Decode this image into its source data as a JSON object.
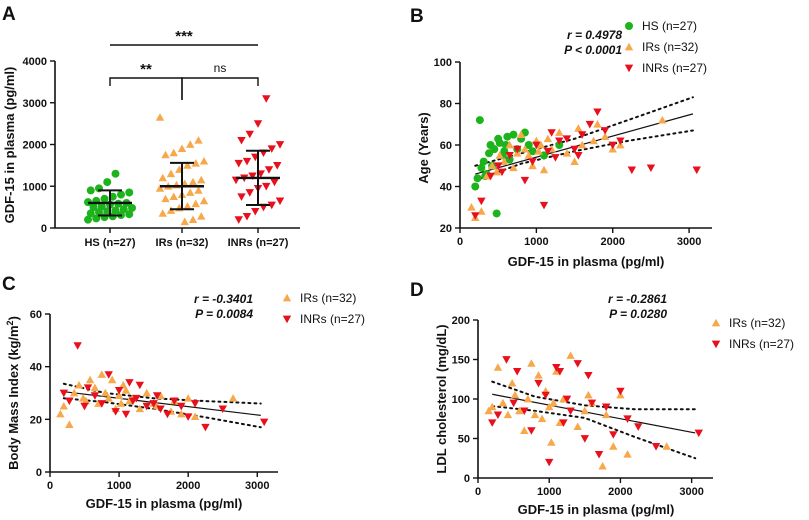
{
  "colors": {
    "HS": "#1db31d",
    "IRs": "#f7a84b",
    "INRs": "#e8101c",
    "axis": "#111111"
  },
  "chart_data": [
    {
      "panel": "A",
      "type": "scatter",
      "title": "",
      "xlabel": "",
      "ylabel": "GDF-15 in plasma (pg/ml)",
      "ylim": [
        0,
        4000
      ],
      "yticks": [
        "0",
        "1000",
        "2000",
        "3000",
        "4000"
      ],
      "categories": [
        "HS (n=27)",
        "IRs (n=32)",
        "INRs (n=27)"
      ],
      "series": [
        {
          "name": "HS",
          "mean": 600,
          "sd_low": 300,
          "sd_high": 900,
          "values": [
            200,
            230,
            260,
            280,
            310,
            330,
            350,
            380,
            400,
            420,
            450,
            480,
            500,
            520,
            560,
            580,
            600,
            620,
            650,
            700,
            750,
            800,
            850,
            900,
            950,
            1100,
            1300
          ]
        },
        {
          "name": "IRs",
          "mean": 1000,
          "sd_low": 450,
          "sd_high": 1560,
          "values": [
            150,
            200,
            280,
            350,
            420,
            480,
            520,
            580,
            650,
            700,
            750,
            800,
            850,
            900,
            950,
            1000,
            1030,
            1060,
            1100,
            1150,
            1200,
            1300,
            1400,
            1500,
            1550,
            1600,
            1750,
            1800,
            1900,
            2000,
            2100,
            2650
          ]
        },
        {
          "name": "INRs",
          "mean": 1200,
          "sd_low": 550,
          "sd_high": 1850,
          "values": [
            200,
            280,
            400,
            500,
            550,
            650,
            750,
            850,
            950,
            1000,
            1100,
            1150,
            1200,
            1250,
            1300,
            1400,
            1500,
            1550,
            1600,
            1700,
            1800,
            1900,
            2000,
            2100,
            2250,
            2500,
            3100
          ]
        }
      ],
      "significance": [
        {
          "from": "HS (n=27)",
          "to": "IRs (n=32)",
          "label": "**"
        },
        {
          "from": "IRs (n=32)",
          "to": "INRs (n=27)",
          "label": "ns"
        },
        {
          "from": "HS (n=27)",
          "to": "INRs (n=27)",
          "label": "***"
        }
      ]
    },
    {
      "panel": "B",
      "type": "scatter",
      "xlabel": "GDF-15 in plasma (pg/ml)",
      "ylabel": "Age (Years)",
      "xlim": [
        0,
        3300
      ],
      "ylim": [
        20,
        100
      ],
      "xticks": [
        "0",
        "1000",
        "2000",
        "3000"
      ],
      "yticks": [
        "20",
        "40",
        "60",
        "80",
        "100"
      ],
      "stats": {
        "r": "r = 0.4978",
        "p": "P < 0.0001"
      },
      "legend": [
        "HS (n=27)",
        "IRs (n=32)",
        "INRs (n=27)"
      ],
      "fit": {
        "x": [
          200,
          3050
        ],
        "y": [
          46,
          75
        ]
      },
      "ci_upper": {
        "x": [
          200,
          800,
          1500,
          2200,
          3050
        ],
        "y": [
          50,
          56,
          63,
          72,
          83
        ]
      },
      "ci_lower": {
        "x": [
          200,
          800,
          1500,
          2200,
          3050
        ],
        "y": [
          43,
          51,
          57,
          62,
          67
        ]
      },
      "series": [
        {
          "name": "HS",
          "marker": "circle",
          "x": [
            200,
            230,
            260,
            280,
            310,
            330,
            350,
            380,
            400,
            420,
            450,
            480,
            500,
            520,
            560,
            580,
            600,
            620,
            650,
            700,
            750,
            800,
            850,
            900,
            950,
            1100,
            1300
          ],
          "y": [
            40,
            44,
            72,
            49,
            52,
            45,
            46,
            56,
            60,
            50,
            58,
            27,
            63,
            61,
            55,
            57,
            60,
            64,
            53,
            65,
            58,
            63,
            66,
            60,
            57,
            55,
            60
          ]
        },
        {
          "name": "IRs",
          "marker": "triangle-up",
          "x": [
            150,
            200,
            280,
            350,
            420,
            480,
            520,
            580,
            650,
            700,
            750,
            800,
            850,
            900,
            950,
            1000,
            1030,
            1060,
            1100,
            1150,
            1200,
            1300,
            1400,
            1500,
            1550,
            1600,
            1750,
            1800,
            1900,
            2000,
            2100,
            2650
          ],
          "y": [
            30,
            25,
            28,
            45,
            50,
            47,
            55,
            52,
            60,
            49,
            56,
            65,
            58,
            55,
            50,
            62,
            57,
            60,
            48,
            63,
            58,
            66,
            56,
            52,
            68,
            60,
            62,
            70,
            64,
            58,
            60,
            72
          ]
        },
        {
          "name": "INRs",
          "marker": "triangle-down",
          "x": [
            200,
            280,
            400,
            500,
            550,
            650,
            750,
            850,
            950,
            1000,
            1100,
            1150,
            1200,
            1250,
            1300,
            1400,
            1500,
            1550,
            1600,
            1700,
            1800,
            1900,
            2000,
            2100,
            2250,
            2500,
            3100
          ],
          "y": [
            26,
            33,
            45,
            50,
            47,
            55,
            58,
            43,
            52,
            60,
            31,
            57,
            66,
            54,
            62,
            63,
            58,
            55,
            65,
            70,
            76,
            67,
            60,
            62,
            48,
            49,
            48
          ]
        }
      ]
    },
    {
      "panel": "C",
      "type": "scatter",
      "xlabel": "GDF-15 in plasma (pg/ml)",
      "ylabel_main": "Body Mass Index (kg/m",
      "ylabel_sup": "2",
      "ylabel_end": ")",
      "xlim": [
        0,
        3300
      ],
      "ylim": [
        0,
        60
      ],
      "xticks": [
        "0",
        "1000",
        "2000",
        "3000"
      ],
      "yticks": [
        "0",
        "20",
        "40",
        "60"
      ],
      "stats": {
        "r": "r = -0.3401",
        "p": "P = 0.0084"
      },
      "legend": [
        "IRs (n=32)",
        "INRs (n=27)"
      ],
      "fit": {
        "x": [
          200,
          3050
        ],
        "y": [
          30.5,
          21.5
        ]
      },
      "ci_upper": {
        "x": [
          200,
          800,
          1500,
          2200,
          3050
        ],
        "y": [
          33.5,
          30,
          28,
          27,
          26
        ]
      },
      "ci_lower": {
        "x": [
          200,
          800,
          1500,
          2200,
          3050
        ],
        "y": [
          28,
          26.5,
          24,
          21,
          17
        ]
      },
      "series": [
        {
          "name": "IRs",
          "marker": "triangle-up",
          "x": [
            150,
            200,
            280,
            350,
            420,
            480,
            520,
            580,
            650,
            700,
            750,
            800,
            850,
            900,
            950,
            1000,
            1030,
            1060,
            1100,
            1150,
            1200,
            1300,
            1400,
            1500,
            1550,
            1600,
            1750,
            1800,
            1900,
            2000,
            2100,
            2650
          ],
          "y": [
            22,
            25,
            18,
            30,
            33,
            28,
            27,
            35,
            32,
            26,
            37,
            30,
            28,
            35,
            24,
            29,
            26,
            33,
            31,
            27,
            28,
            24,
            30,
            26,
            25,
            29,
            23,
            27,
            22,
            28,
            21,
            28
          ]
        },
        {
          "name": "INRs",
          "marker": "triangle-down",
          "x": [
            200,
            280,
            400,
            500,
            550,
            650,
            750,
            850,
            950,
            1000,
            1100,
            1150,
            1200,
            1250,
            1300,
            1400,
            1500,
            1550,
            1600,
            1700,
            1800,
            1900,
            2000,
            2100,
            2250,
            2500,
            3100
          ],
          "y": [
            30,
            27,
            48,
            25,
            32,
            29,
            26,
            37,
            23,
            31,
            22,
            34,
            27,
            28,
            33,
            25,
            26,
            29,
            24,
            22,
            27,
            25,
            21,
            26,
            17,
            24,
            19
          ]
        }
      ]
    },
    {
      "panel": "D",
      "type": "scatter",
      "xlabel": "GDF-15 in plasma (pg/ml)",
      "ylabel": "LDL cholesterol (mg/dL)",
      "xlim": [
        0,
        3300
      ],
      "ylim": [
        0,
        200
      ],
      "xticks": [
        "0",
        "1000",
        "2000",
        "3000"
      ],
      "yticks": [
        "0",
        "50",
        "100",
        "150",
        "200"
      ],
      "stats": {
        "r": "r = -0.2861",
        "p": "P = 0.0280"
      },
      "legend": [
        "IRs (n=32)",
        "INRs (n=27)"
      ],
      "fit": {
        "x": [
          200,
          3050
        ],
        "y": [
          106,
          57
        ]
      },
      "ci_upper": {
        "x": [
          200,
          800,
          1500,
          2200,
          3050
        ],
        "y": [
          122,
          103,
          92,
          87,
          87
        ]
      },
      "ci_lower": {
        "x": [
          200,
          800,
          1500,
          2200,
          3050
        ],
        "y": [
          91,
          85,
          76,
          52,
          25
        ]
      },
      "series": [
        {
          "name": "IRs",
          "marker": "triangle-up",
          "x": [
            150,
            200,
            280,
            350,
            420,
            480,
            520,
            580,
            650,
            700,
            750,
            800,
            850,
            900,
            950,
            1000,
            1030,
            1060,
            1100,
            1150,
            1200,
            1300,
            1400,
            1500,
            1550,
            1600,
            1750,
            1800,
            1900,
            2000,
            2100,
            2650
          ],
          "y": [
            85,
            90,
            140,
            95,
            80,
            120,
            105,
            85,
            60,
            100,
            145,
            80,
            130,
            75,
            110,
            90,
            45,
            95,
            135,
            70,
            100,
            155,
            65,
            85,
            105,
            95,
            15,
            80,
            40,
            105,
            30,
            40
          ]
        },
        {
          "name": "INRs",
          "marker": "triangle-down",
          "x": [
            200,
            280,
            400,
            500,
            550,
            650,
            750,
            850,
            950,
            1000,
            1100,
            1150,
            1200,
            1250,
            1300,
            1400,
            1500,
            1550,
            1600,
            1700,
            1800,
            1900,
            2000,
            2100,
            2250,
            2500,
            3100
          ],
          "y": [
            70,
            80,
            150,
            95,
            135,
            85,
            60,
            120,
            105,
            20,
            140,
            135,
            70,
            100,
            85,
            145,
            50,
            130,
            95,
            30,
            90,
            55,
            110,
            75,
            65,
            40,
            57
          ]
        }
      ]
    }
  ]
}
